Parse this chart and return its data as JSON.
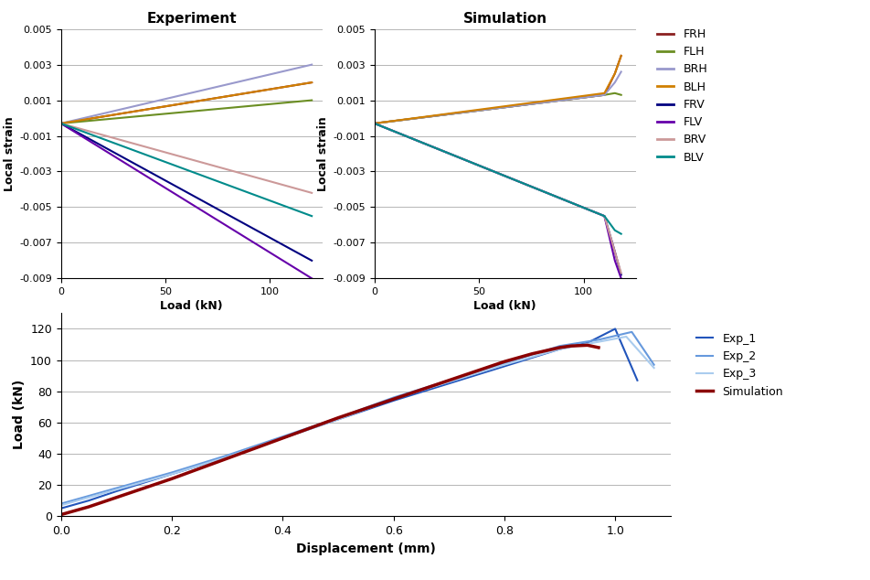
{
  "exp_title": "Experiment",
  "sim_title": "Simulation",
  "xlabel_strain": "Load (kN)",
  "ylabel_strain": "Local strain",
  "xlabel_disp": "Displacement (mm)",
  "ylabel_disp": "Load (kN)",
  "strain_xlim": [
    0,
    125
  ],
  "strain_ylim": [
    -0.009,
    0.005
  ],
  "strain_xticks": [
    0,
    50,
    100
  ],
  "strain_yticks": [
    -0.009,
    -0.007,
    -0.005,
    -0.003,
    -0.001,
    0.001,
    0.003,
    0.005
  ],
  "disp_xlim": [
    0,
    1.1
  ],
  "disp_ylim": [
    0,
    130
  ],
  "disp_yticks": [
    0,
    20,
    40,
    60,
    80,
    100,
    120
  ],
  "disp_xticks": [
    0.0,
    0.2,
    0.4,
    0.6,
    0.8,
    1.0
  ],
  "colors": {
    "FRH": "#8B2020",
    "FLH": "#6B8E23",
    "BRH": "#9999CC",
    "BLH": "#D08000",
    "FRV": "#000080",
    "FLV": "#6600AA",
    "BRV": "#CC9999",
    "BLV": "#008B8B"
  },
  "exp_data": {
    "FRH": {
      "x": [
        0,
        120
      ],
      "y": [
        -0.0003,
        0.002
      ]
    },
    "FLH": {
      "x": [
        0,
        120
      ],
      "y": [
        -0.0003,
        0.001
      ]
    },
    "BRH": {
      "x": [
        0,
        120
      ],
      "y": [
        -0.0003,
        0.003
      ]
    },
    "BLH": {
      "x": [
        0,
        120
      ],
      "y": [
        -0.0003,
        0.002
      ]
    },
    "FRV": {
      "x": [
        0,
        120
      ],
      "y": [
        -0.0003,
        -0.008
      ]
    },
    "FLV": {
      "x": [
        0,
        120
      ],
      "y": [
        -0.0003,
        -0.009
      ]
    },
    "BRV": {
      "x": [
        0,
        120
      ],
      "y": [
        -0.0003,
        -0.0042
      ]
    },
    "BLV": {
      "x": [
        0,
        120
      ],
      "y": [
        -0.0003,
        -0.0055
      ]
    }
  },
  "sim_data": {
    "FRH": {
      "x": [
        0,
        110,
        115,
        118
      ],
      "y": [
        -0.0003,
        0.0013,
        0.0025,
        0.0035
      ]
    },
    "FLH": {
      "x": [
        0,
        110,
        115,
        118
      ],
      "y": [
        -0.0003,
        0.0013,
        0.0014,
        0.0013
      ]
    },
    "BRH": {
      "x": [
        0,
        110,
        115,
        118
      ],
      "y": [
        -0.0003,
        0.0013,
        0.002,
        0.0026
      ]
    },
    "BLH": {
      "x": [
        0,
        110,
        115,
        118
      ],
      "y": [
        -0.0003,
        0.0014,
        0.0025,
        0.0035
      ]
    },
    "FRV": {
      "x": [
        0,
        110,
        115,
        118
      ],
      "y": [
        -0.0003,
        -0.0055,
        -0.0075,
        -0.0088
      ]
    },
    "FLV": {
      "x": [
        0,
        110,
        115,
        118
      ],
      "y": [
        -0.0003,
        -0.0055,
        -0.008,
        -0.009
      ]
    },
    "BRV": {
      "x": [
        0,
        110,
        115,
        118
      ],
      "y": [
        -0.0003,
        -0.0055,
        -0.0075,
        -0.0087
      ]
    },
    "BLV": {
      "x": [
        0,
        110,
        115,
        118
      ],
      "y": [
        -0.0003,
        -0.0055,
        -0.0063,
        -0.0065
      ]
    }
  },
  "exp1_disp": [
    0.0,
    0.02,
    0.05,
    0.1,
    0.2,
    0.3,
    0.4,
    0.5,
    0.6,
    0.7,
    0.8,
    0.9,
    0.95,
    1.0,
    1.04
  ],
  "exp1_load": [
    5.0,
    7.0,
    10.0,
    16.0,
    27.0,
    38.0,
    50.0,
    62.0,
    74.0,
    85.0,
    96.0,
    107.0,
    111.0,
    120.0,
    87.0
  ],
  "exp2_disp": [
    0.0,
    0.02,
    0.05,
    0.1,
    0.2,
    0.3,
    0.4,
    0.5,
    0.6,
    0.7,
    0.8,
    0.9,
    0.97,
    1.03,
    1.07
  ],
  "exp2_load": [
    8.0,
    10.0,
    13.0,
    18.0,
    28.0,
    39.0,
    51.0,
    63.0,
    76.0,
    87.0,
    98.0,
    109.0,
    113.0,
    118.0,
    97.0
  ],
  "exp3_disp": [
    0.0,
    0.02,
    0.05,
    0.1,
    0.2,
    0.3,
    0.4,
    0.5,
    0.6,
    0.7,
    0.8,
    0.9,
    0.96,
    1.02,
    1.07
  ],
  "exp3_load": [
    7.0,
    9.0,
    12.0,
    17.0,
    27.0,
    38.0,
    50.0,
    62.0,
    75.0,
    86.0,
    97.0,
    107.0,
    111.0,
    115.0,
    95.0
  ],
  "sim_disp": [
    0.0,
    0.05,
    0.1,
    0.2,
    0.3,
    0.4,
    0.5,
    0.6,
    0.7,
    0.8,
    0.85,
    0.9,
    0.92,
    0.95,
    0.97
  ],
  "sim_load": [
    1.0,
    6.0,
    12.0,
    24.0,
    37.0,
    50.0,
    63.0,
    75.0,
    87.0,
    99.0,
    104.0,
    108.0,
    109.0,
    109.5,
    108.0
  ],
  "legend_strain": [
    "FRH",
    "FLH",
    "BRH",
    "BLH",
    "FRV",
    "FLV",
    "BRV",
    "BLV"
  ],
  "legend_disp": [
    "Exp_1",
    "Exp_2",
    "Exp_3",
    "Simulation"
  ],
  "exp1_color": "#2255BB",
  "exp2_color": "#6699DD",
  "exp3_color": "#AACCEE",
  "sim_color_disp": "#8B0000"
}
